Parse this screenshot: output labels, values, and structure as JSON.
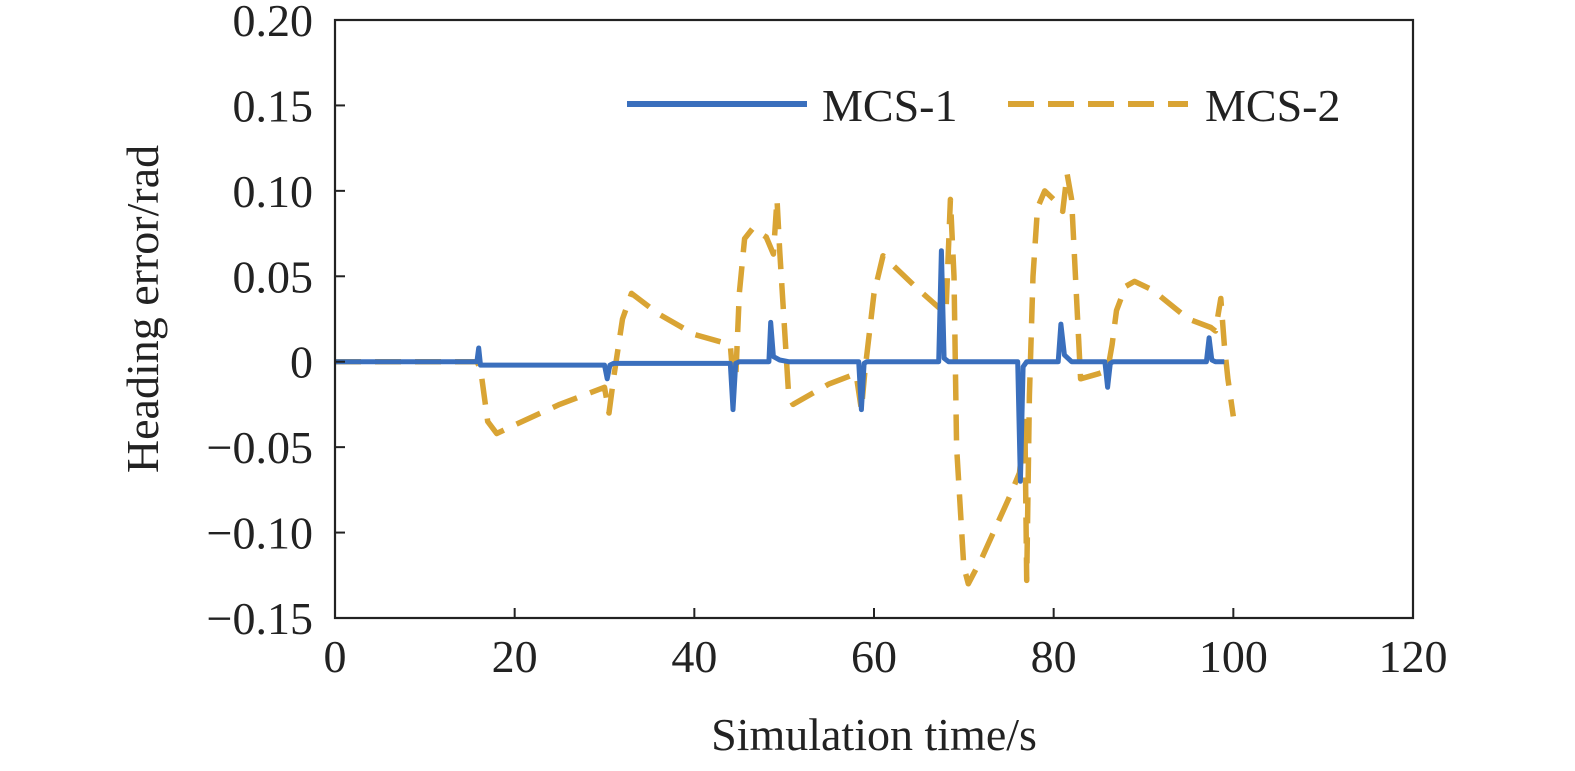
{
  "colors": {
    "mcs1": "#3a6fbd",
    "mcs2": "#d9a434",
    "axis": "#222222"
  },
  "chart_data": {
    "type": "line",
    "title": "",
    "xlabel": "Simulation time/s",
    "ylabel": "Heading error/rad",
    "xlim": [
      0,
      120
    ],
    "ylim": [
      -0.15,
      0.2
    ],
    "xticks": [
      0,
      20,
      40,
      60,
      80,
      100,
      120
    ],
    "xtick_labels": [
      "0",
      "20",
      "40",
      "60",
      "80",
      "100",
      "120"
    ],
    "yticks": [
      -0.15,
      -0.1,
      -0.05,
      0,
      0.05,
      0.1,
      0.15,
      0.2
    ],
    "ytick_labels": [
      "−0.15",
      "−0.10",
      "−0.05",
      "0",
      "0.05",
      "0.10",
      "0.15",
      "0.20"
    ],
    "grid": false,
    "legend_position": "top-right",
    "series": [
      {
        "name": "MCS-1",
        "style": "solid",
        "x": [
          0,
          15.8,
          16.0,
          16.2,
          16.5,
          30,
          30.3,
          30.6,
          31,
          44,
          44.3,
          44.6,
          45,
          48.3,
          48.5,
          48.8,
          49.5,
          50.5,
          58.3,
          58.6,
          58.9,
          59.2,
          67.2,
          67.5,
          67.8,
          68.3,
          76.0,
          76.3,
          76.6,
          77.0,
          80.5,
          80.8,
          81.2,
          82.0,
          85.7,
          86.0,
          86.3,
          86.6,
          97.0,
          97.3,
          97.6,
          98,
          99
        ],
        "y": [
          0,
          0,
          0.008,
          -0.002,
          -0.002,
          -0.002,
          -0.01,
          -0.002,
          -0.001,
          -0.001,
          -0.028,
          -0.001,
          0,
          0,
          0.023,
          0.003,
          0.001,
          0,
          0,
          -0.028,
          -0.001,
          0,
          0,
          0.065,
          0.002,
          0,
          0,
          -0.07,
          -0.003,
          0,
          0,
          0.022,
          0.004,
          0,
          0,
          -0.015,
          -0.001,
          0,
          0,
          0.014,
          0.001,
          0,
          0
        ]
      },
      {
        "name": "MCS-2",
        "style": "dashed",
        "x": [
          0,
          15.8,
          16.2,
          17,
          18,
          20,
          25,
          30,
          30.5,
          31,
          32,
          33,
          36,
          40,
          44,
          44.3,
          44.6,
          45,
          45.6,
          46.5,
          48,
          48.8,
          49.2,
          49.5,
          50.5,
          51,
          55,
          58,
          58.6,
          59,
          60,
          61,
          65,
          68,
          68.5,
          68.9,
          69.2,
          70,
          70.5,
          72,
          75,
          76.2,
          76.8,
          77,
          77.3,
          77.7,
          78.2,
          79,
          80,
          81,
          81.5,
          82,
          83,
          85,
          86,
          86.5,
          87,
          88,
          89,
          91,
          95,
          97.5,
          98,
          98.6,
          99,
          99.4,
          100
        ],
        "y": [
          0,
          0,
          -0.004,
          -0.035,
          -0.042,
          -0.037,
          -0.025,
          -0.015,
          -0.03,
          -0.01,
          0.025,
          0.04,
          0.028,
          0.016,
          0.01,
          -0.01,
          -0.01,
          0.04,
          0.072,
          0.078,
          0.073,
          0.063,
          0.095,
          0.065,
          -0.02,
          -0.025,
          -0.013,
          -0.007,
          -0.028,
          -0.005,
          0.04,
          0.062,
          0.042,
          0.028,
          0.095,
          0.05,
          -0.05,
          -0.12,
          -0.13,
          -0.115,
          -0.08,
          -0.065,
          -0.035,
          -0.128,
          -0.02,
          0.05,
          0.09,
          0.1,
          0.095,
          0.088,
          0.11,
          0.095,
          -0.01,
          -0.007,
          -0.005,
          0.01,
          0.03,
          0.044,
          0.047,
          0.042,
          0.025,
          0.02,
          0.018,
          0.037,
          0.01,
          -0.01,
          -0.032
        ]
      }
    ]
  }
}
